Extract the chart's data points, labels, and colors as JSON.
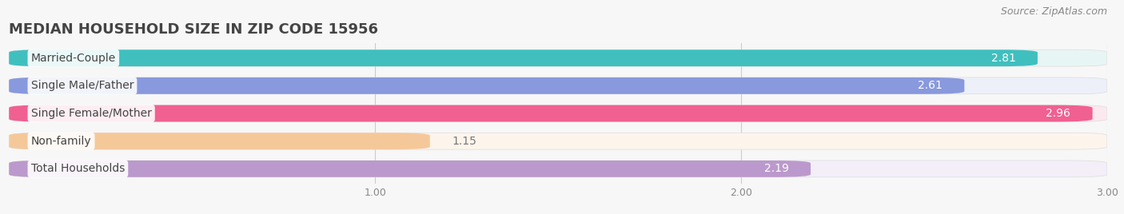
{
  "title": "MEDIAN HOUSEHOLD SIZE IN ZIP CODE 15956",
  "source": "Source: ZipAtlas.com",
  "categories": [
    "Married-Couple",
    "Single Male/Father",
    "Single Female/Mother",
    "Non-family",
    "Total Households"
  ],
  "values": [
    2.81,
    2.61,
    2.96,
    1.15,
    2.19
  ],
  "bar_colors": [
    "#40bfbf",
    "#8899dd",
    "#f06090",
    "#f5c89a",
    "#bb99cc"
  ],
  "bar_bg_colors": [
    "#e8f5f5",
    "#edf0f9",
    "#fce8ef",
    "#fdf5ec",
    "#f3eef8"
  ],
  "row_sep_color": "#dddddd",
  "value_inside_color": "#ffffff",
  "value_outside_color": "#777777",
  "label_bg_color": "#ffffff",
  "label_text_color": "#444444",
  "xtick_color": "#888888",
  "grid_color": "#cccccc",
  "xlim_min": 0.0,
  "xlim_max": 3.0,
  "xticks": [
    1.0,
    2.0,
    3.0
  ],
  "title_fontsize": 13,
  "label_fontsize": 10,
  "value_fontsize": 10,
  "source_fontsize": 9,
  "background_color": "#f7f7f7",
  "bar_row_bg": "#f0f0f0"
}
